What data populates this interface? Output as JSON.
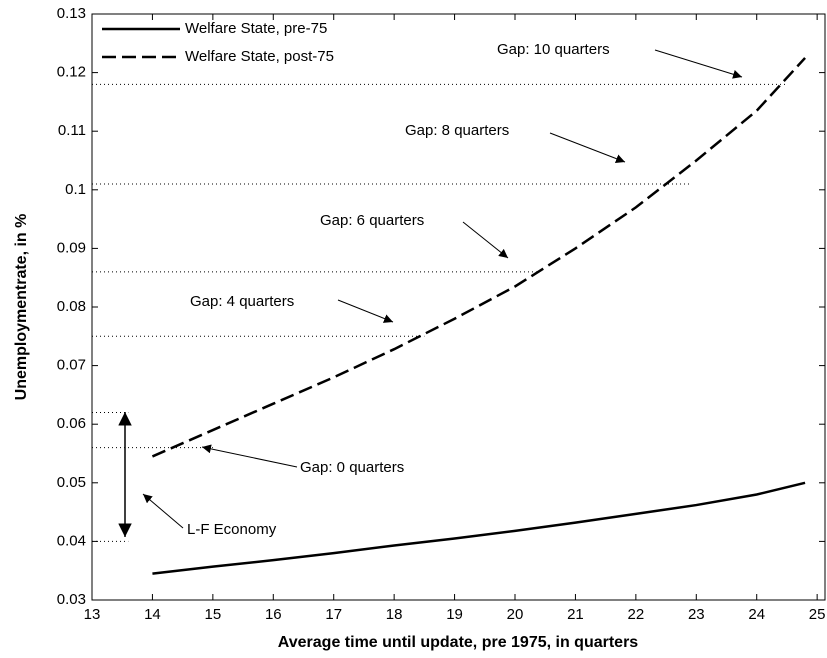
{
  "chart_data": {
    "type": "line",
    "xlabel": "Average time until update, pre 1975, in quarters",
    "ylabel": "Unemploymentrate, in %",
    "x": [
      14,
      15,
      16,
      17,
      18,
      19,
      20,
      21,
      22,
      23,
      24,
      24.8
    ],
    "series": [
      {
        "name": "Welfare State, pre-75",
        "color": "#000000",
        "dash": "solid",
        "values": [
          0.0345,
          0.0357,
          0.0368,
          0.038,
          0.0393,
          0.0405,
          0.0418,
          0.0432,
          0.0447,
          0.0462,
          0.048,
          0.05
        ]
      },
      {
        "name": "Welfare State, post-75",
        "color": "#000000",
        "dash": "dashed",
        "values": [
          0.0545,
          0.059,
          0.0635,
          0.068,
          0.0728,
          0.078,
          0.0835,
          0.09,
          0.097,
          0.105,
          0.1135,
          0.1225
        ]
      }
    ],
    "reference_lines": [
      {
        "y": 0.118,
        "x": [
          13,
          24.5
        ]
      },
      {
        "y": 0.101,
        "x": [
          13,
          22.9
        ]
      },
      {
        "y": 0.086,
        "x": [
          13,
          20.4
        ]
      },
      {
        "y": 0.075,
        "x": [
          13,
          18.5
        ]
      },
      {
        "y": 0.062,
        "x": [
          13,
          13.6
        ]
      },
      {
        "y": 0.056,
        "x": [
          13,
          15
        ]
      },
      {
        "y": 0.04,
        "x": [
          13,
          13.6
        ]
      }
    ],
    "annotations": [
      "Gap: 10 quarters",
      "Gap: 8 quarters",
      "Gap: 6 quarters",
      "Gap: 4 quarters",
      "Gap: 0 quarters",
      "L-F Economy"
    ],
    "xlim": [
      13,
      25.13
    ],
    "ylim": [
      0.03,
      0.13
    ],
    "xticks": [
      13,
      14,
      15,
      16,
      17,
      18,
      19,
      20,
      21,
      22,
      23,
      24,
      25
    ],
    "yticks": [
      0.03,
      0.04,
      0.05,
      0.06,
      0.07,
      0.08,
      0.09,
      0.1,
      0.11,
      0.12,
      0.13
    ],
    "legend": "upper left"
  }
}
